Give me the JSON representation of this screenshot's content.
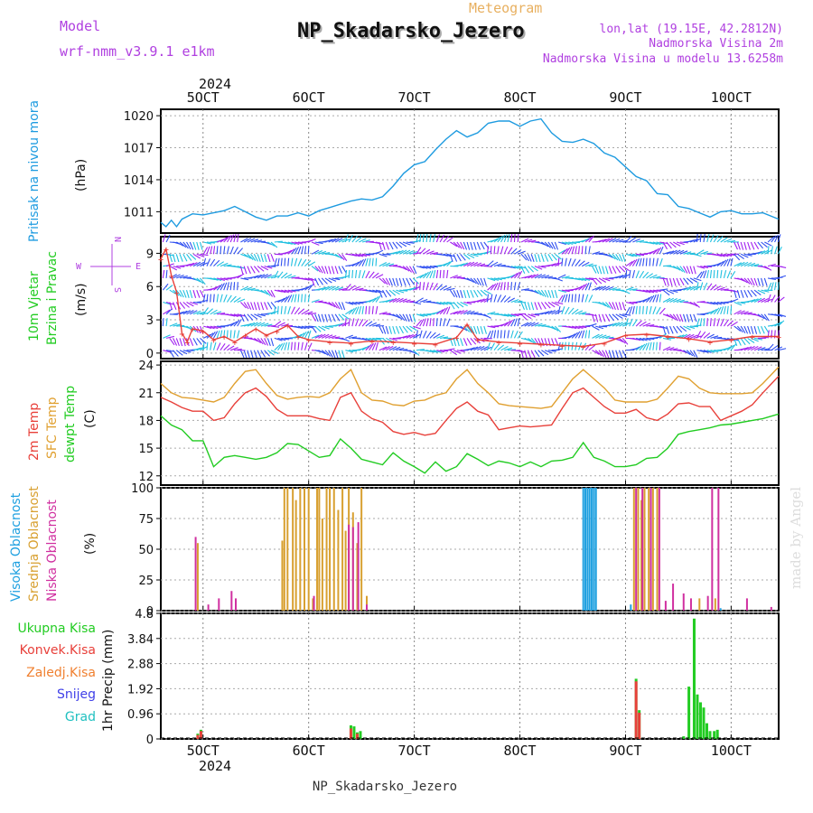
{
  "header": {
    "model_label": "Model",
    "model_name": "wrf-nmm_v3.9.1  e1km",
    "meteogram_label": "Meteogram",
    "station": "NP_Skadarsko_Jezero",
    "lonlat": "lon,lat (19.15E, 42.2812N)",
    "altitude": "Nadmorska Visina 2m",
    "model_altitude": "Nadmorska Visina u modelu 13.6258m",
    "footer_station": "NP_Skadarsko_Jezero",
    "watermark": "made by Angel"
  },
  "time_axis": {
    "year": "2024",
    "labels": [
      "5OCT",
      "6OCT",
      "7OCT",
      "8OCT",
      "9OCT",
      "10OCT"
    ],
    "start_day": 4.6,
    "end_day": 10.45
  },
  "colors": {
    "pressure": "#1e9be0",
    "temp": "#e8403a",
    "sfc_temp": "#e0a030",
    "dewpt": "#22cc22",
    "cloud_high": "#1ea0e0",
    "cloud_mid": "#d8a030",
    "cloud_low": "#d030a0",
    "wind_cyan": "#20c0e0",
    "wind_purple": "#a020f0",
    "wind_blue": "#3050f0",
    "precip_total": "#22cc22",
    "precip_conv": "#e8403a",
    "label_purple": "#b040e0"
  },
  "chart_data": [
    {
      "type": "line",
      "id": "pressure",
      "ylabel_lines": [
        "Pritisak na nivou mora"
      ],
      "unit": "(hPa)",
      "ylim": [
        1009,
        1020.6
      ],
      "yticks": [
        "1011",
        "1014",
        "1017",
        "1020"
      ],
      "series": [
        {
          "color_key": "pressure",
          "x": [
            4.6,
            4.65,
            4.7,
            4.75,
            4.8,
            4.9,
            5.0,
            5.1,
            5.2,
            5.3,
            5.4,
            5.5,
            5.6,
            5.7,
            5.8,
            5.9,
            6.0,
            6.1,
            6.2,
            6.3,
            6.4,
            6.5,
            6.6,
            6.7,
            6.8,
            6.9,
            7.0,
            7.1,
            7.2,
            7.3,
            7.4,
            7.5,
            7.6,
            7.7,
            7.8,
            7.9,
            8.0,
            8.1,
            8.2,
            8.3,
            8.4,
            8.5,
            8.6,
            8.7,
            8.8,
            8.9,
            9.0,
            9.1,
            9.2,
            9.3,
            9.4,
            9.5,
            9.6,
            9.7,
            9.8,
            9.9,
            10.0,
            10.1,
            10.2,
            10.3,
            10.45
          ],
          "values": [
            1010.0,
            1009.6,
            1010.2,
            1009.6,
            1010.3,
            1010.8,
            1010.7,
            1010.9,
            1011.1,
            1011.5,
            1011.0,
            1010.5,
            1010.2,
            1010.6,
            1010.6,
            1010.9,
            1010.6,
            1011.1,
            1011.4,
            1011.7,
            1012.0,
            1012.2,
            1012.1,
            1012.4,
            1013.4,
            1014.6,
            1015.4,
            1015.7,
            1016.8,
            1017.8,
            1018.6,
            1018.0,
            1018.4,
            1019.3,
            1019.5,
            1019.5,
            1019.0,
            1019.5,
            1019.7,
            1018.4,
            1017.6,
            1017.5,
            1017.8,
            1017.4,
            1016.5,
            1016.1,
            1015.2,
            1014.3,
            1013.9,
            1012.7,
            1012.6,
            1011.5,
            1011.3,
            1010.9,
            1010.5,
            1011.0,
            1011.1,
            1010.8,
            1010.8,
            1010.9,
            1010.3
          ]
        }
      ]
    },
    {
      "type": "line",
      "id": "wind",
      "ylabel_lines": [
        "10m Vjetar",
        "Brzina i Pravac"
      ],
      "unit": "(m/s)",
      "ylim": [
        -0.5,
        10.5
      ],
      "yticks": [
        "0",
        "3",
        "6",
        "9"
      ],
      "compass": {
        "n": "N",
        "w": "W",
        "e": "E",
        "s": "S"
      },
      "series": [
        {
          "name": "speed",
          "color_key": "temp",
          "x": [
            4.6,
            4.65,
            4.7,
            4.75,
            4.8,
            4.85,
            4.9,
            5.0,
            5.1,
            5.2,
            5.3,
            5.4,
            5.5,
            5.6,
            5.7,
            5.8,
            5.9,
            6.0,
            6.2,
            6.4,
            6.6,
            6.8,
            7.0,
            7.2,
            7.4,
            7.5,
            7.6,
            7.8,
            8.0,
            8.2,
            8.4,
            8.6,
            8.8,
            9.0,
            9.2,
            9.4,
            9.6,
            9.8,
            10.0,
            10.2,
            10.45
          ],
          "values": [
            8.5,
            9.4,
            7.0,
            5.5,
            1.8,
            1.0,
            2.2,
            2.0,
            1.2,
            1.5,
            1.0,
            1.6,
            2.2,
            1.6,
            2.0,
            2.5,
            1.5,
            1.2,
            1.0,
            0.9,
            1.1,
            1.0,
            0.9,
            0.8,
            1.4,
            2.6,
            1.2,
            1.0,
            0.9,
            0.8,
            0.7,
            0.6,
            0.9,
            1.6,
            1.7,
            1.5,
            1.3,
            1.0,
            1.2,
            1.5,
            1.5
          ]
        }
      ]
    },
    {
      "type": "line",
      "id": "temperature",
      "ylabel_lines": [
        "2m Temp",
        "SFC Temp",
        "dewpt Temp"
      ],
      "unit": "(C)",
      "ylim": [
        11,
        24.4
      ],
      "yticks": [
        "12",
        "15",
        "18",
        "21",
        "24"
      ],
      "x": [
        4.6,
        4.7,
        4.8,
        4.9,
        5.0,
        5.1,
        5.2,
        5.3,
        5.4,
        5.5,
        5.6,
        5.7,
        5.8,
        5.9,
        6.0,
        6.1,
        6.2,
        6.3,
        6.4,
        6.5,
        6.6,
        6.7,
        6.8,
        6.9,
        7.0,
        7.1,
        7.2,
        7.3,
        7.4,
        7.5,
        7.6,
        7.7,
        7.8,
        7.9,
        8.0,
        8.1,
        8.2,
        8.3,
        8.4,
        8.5,
        8.6,
        8.7,
        8.8,
        8.9,
        9.0,
        9.1,
        9.2,
        9.3,
        9.4,
        9.5,
        9.6,
        9.7,
        9.8,
        9.9,
        10.0,
        10.1,
        10.2,
        10.3,
        10.45
      ],
      "series": [
        {
          "name": "2m Temp",
          "color_key": "temp",
          "values": [
            20.5,
            20.0,
            19.4,
            19.0,
            19.0,
            18.0,
            18.3,
            19.8,
            21.0,
            21.5,
            20.6,
            19.2,
            18.5,
            18.5,
            18.5,
            18.2,
            18.0,
            20.5,
            21.0,
            19.0,
            18.2,
            17.8,
            16.8,
            16.5,
            16.7,
            16.4,
            16.6,
            18.0,
            19.3,
            20.0,
            19.0,
            18.6,
            17.0,
            17.2,
            17.4,
            17.3,
            17.4,
            17.5,
            19.3,
            21.0,
            21.5,
            20.5,
            19.5,
            18.8,
            18.8,
            19.2,
            18.3,
            18.0,
            18.7,
            19.8,
            19.9,
            19.5,
            19.5,
            18.0,
            18.5,
            19.0,
            19.7,
            21.0,
            22.8
          ]
        },
        {
          "name": "SFC Temp",
          "color_key": "sfc_temp",
          "values": [
            22.0,
            21.0,
            20.5,
            20.4,
            20.2,
            20.0,
            20.5,
            22.0,
            23.3,
            23.5,
            22.0,
            20.7,
            20.3,
            20.5,
            20.6,
            20.5,
            21.0,
            22.5,
            23.5,
            21.0,
            20.2,
            20.1,
            19.7,
            19.6,
            20.1,
            20.2,
            20.7,
            21.0,
            22.5,
            23.5,
            22.0,
            21.0,
            19.8,
            19.6,
            19.5,
            19.4,
            19.3,
            19.5,
            21.0,
            22.5,
            23.5,
            22.5,
            21.5,
            20.2,
            20.0,
            20.0,
            20.0,
            20.3,
            21.5,
            22.8,
            22.5,
            21.5,
            21.0,
            20.9,
            20.9,
            20.9,
            21.0,
            22.0,
            23.8
          ]
        },
        {
          "name": "dewpt Temp",
          "color_key": "dewpt",
          "values": [
            18.5,
            17.5,
            17.0,
            15.8,
            15.8,
            13.0,
            14.0,
            14.2,
            14.0,
            13.8,
            14.0,
            14.5,
            15.5,
            15.4,
            14.7,
            14.0,
            14.2,
            16.0,
            15.0,
            13.8,
            13.5,
            13.2,
            14.5,
            13.6,
            13.0,
            12.3,
            13.5,
            12.5,
            13.0,
            14.4,
            13.8,
            13.1,
            13.6,
            13.4,
            13.0,
            13.5,
            13.0,
            13.6,
            13.7,
            14.0,
            15.6,
            14.0,
            13.6,
            13.0,
            13.0,
            13.2,
            13.9,
            14.0,
            15.0,
            16.5,
            16.8,
            17.0,
            17.2,
            17.5,
            17.6,
            17.8,
            18.0,
            18.2,
            18.7
          ]
        }
      ]
    },
    {
      "type": "bar",
      "id": "clouds",
      "ylabel_lines": [
        "Visoka Oblacnost",
        "Srednja Oblacnost",
        "Niska Oblacnost"
      ],
      "unit": "(%)",
      "ylim": [
        0,
        100
      ],
      "yticks": [
        "0",
        "25",
        "50",
        "75",
        "100"
      ],
      "series": [
        {
          "name": "Visoka Oblacnost",
          "color_key": "cloud_high",
          "x": [
            8.6,
            8.62,
            8.64,
            8.66,
            8.68,
            8.7,
            8.72,
            9.05,
            9.9
          ],
          "values": [
            100,
            100,
            100,
            100,
            100,
            100,
            100,
            5,
            2
          ]
        },
        {
          "name": "Srednja Oblacnost",
          "color_key": "cloud_mid",
          "x": [
            4.95,
            5.75,
            5.77,
            5.8,
            5.85,
            5.88,
            5.92,
            5.96,
            6.0,
            6.04,
            6.08,
            6.1,
            6.13,
            6.17,
            6.2,
            6.24,
            6.28,
            6.32,
            6.35,
            6.38,
            6.42,
            6.46,
            6.5,
            6.55,
            9.08,
            9.12,
            9.15,
            9.18,
            9.22,
            9.26,
            9.3,
            9.7,
            9.85
          ],
          "values": [
            55,
            57,
            100,
            100,
            100,
            90,
            100,
            100,
            100,
            10,
            100,
            100,
            75,
            100,
            100,
            100,
            82,
            100,
            65,
            100,
            80,
            55,
            100,
            12,
            100,
            100,
            90,
            100,
            100,
            100,
            100,
            10,
            10
          ]
        },
        {
          "name": "Niska Oblacnost",
          "color_key": "cloud_low",
          "x": [
            4.93,
            5.05,
            5.15,
            5.27,
            5.31,
            6.05,
            6.38,
            6.42,
            6.47,
            6.55,
            9.1,
            9.16,
            9.24,
            9.32,
            9.38,
            9.45,
            9.55,
            9.62,
            9.78,
            9.82,
            9.88,
            10.15,
            10.38
          ],
          "values": [
            60,
            5,
            10,
            16,
            10,
            12,
            70,
            68,
            72,
            5,
            100,
            100,
            100,
            100,
            8,
            22,
            14,
            10,
            12,
            100,
            100,
            10,
            3
          ]
        }
      ]
    },
    {
      "type": "bar",
      "id": "precip",
      "ylabel_lines": [
        "1hr Precip (mm)"
      ],
      "legend": [
        "Ukupna Kisa",
        "Konvek.Kisa",
        "Zaledj.Kisa",
        "Snijeg",
        "Grad"
      ],
      "legend_color_keys": [
        "precip_total",
        "precip_conv",
        "sfc_temp",
        "wind_blue",
        "wind_cyan"
      ],
      "ylim": [
        0,
        4.8
      ],
      "yticks": [
        "0",
        "0.96",
        "1.92",
        "2.88",
        "3.84",
        "4.8"
      ],
      "series": [
        {
          "name": "Ukupna Kisa",
          "color_key": "precip_total",
          "x": [
            4.95,
            4.98,
            6.4,
            6.43,
            6.46,
            6.49,
            9.1,
            9.13,
            9.55,
            9.6,
            9.65,
            9.68,
            9.71,
            9.74,
            9.77,
            9.8,
            9.84,
            9.87
          ],
          "values": [
            0.2,
            0.35,
            0.52,
            0.48,
            0.25,
            0.3,
            2.3,
            1.1,
            0.1,
            2.0,
            4.6,
            1.7,
            1.4,
            1.2,
            0.6,
            0.3,
            0.3,
            0.35
          ]
        },
        {
          "name": "Konvek.Kisa",
          "color_key": "precip_conv",
          "x": [
            4.95,
            4.98,
            6.4,
            6.46,
            9.1,
            9.13
          ],
          "values": [
            0.15,
            0.3,
            0.4,
            0.2,
            2.2,
            1.0
          ]
        }
      ]
    }
  ]
}
